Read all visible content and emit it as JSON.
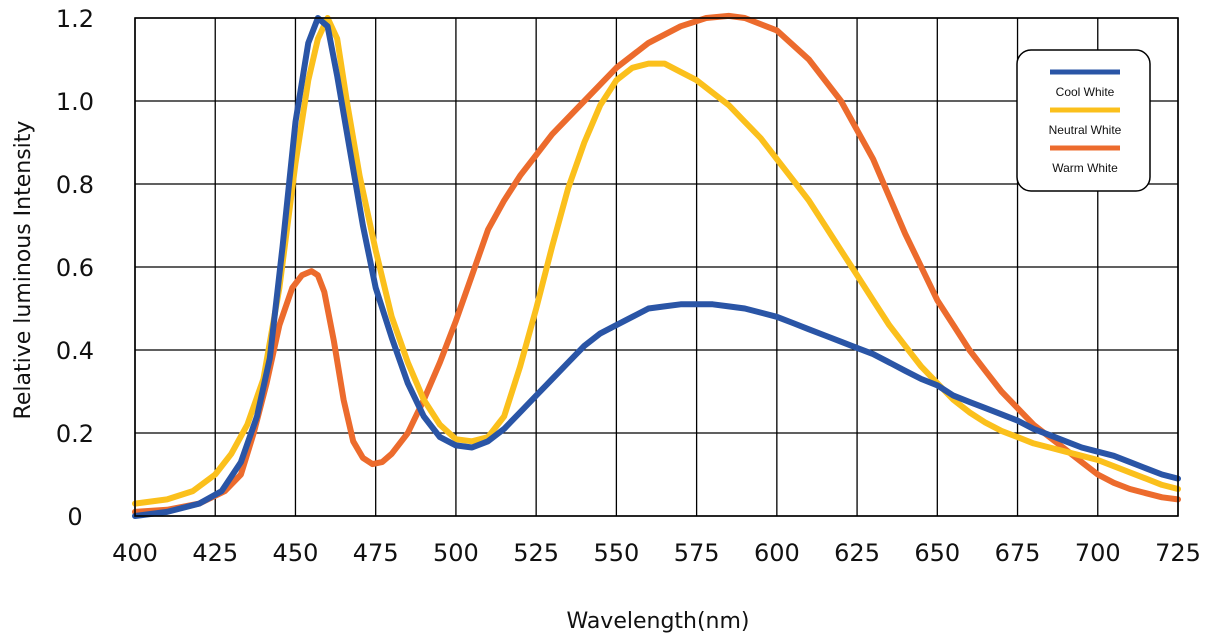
{
  "chart_data": {
    "type": "line",
    "xlabel": "Wavelength(nm)",
    "ylabel": "Relative luminous Intensity",
    "xlim": [
      400,
      725
    ],
    "ylim": [
      0,
      1.2
    ],
    "x_ticks": [
      400,
      425,
      450,
      475,
      500,
      525,
      550,
      575,
      600,
      625,
      650,
      675,
      700,
      725
    ],
    "x_tick_labels": [
      "400",
      "425",
      "450",
      "475",
      "500",
      "525",
      "550",
      "575",
      "600",
      "625",
      "650",
      "675",
      "700",
      "725"
    ],
    "y_ticks": [
      0,
      0.2,
      0.4,
      0.6,
      0.8,
      1.0,
      1.2
    ],
    "y_tick_labels": [
      "0",
      "0.2",
      "0.4",
      "0.6",
      "0.8",
      "1.0",
      "1.2"
    ],
    "grid": true,
    "legend_position": "top-right",
    "series": [
      {
        "name": "Cool White",
        "color": "#2a55a6",
        "points": [
          [
            400,
            0
          ],
          [
            410,
            0.01
          ],
          [
            420,
            0.03
          ],
          [
            427,
            0.06
          ],
          [
            433,
            0.13
          ],
          [
            438,
            0.24
          ],
          [
            442,
            0.38
          ],
          [
            446,
            0.65
          ],
          [
            450,
            0.95
          ],
          [
            454,
            1.14
          ],
          [
            457,
            1.2
          ],
          [
            460,
            1.18
          ],
          [
            463,
            1.06
          ],
          [
            467,
            0.88
          ],
          [
            471,
            0.7
          ],
          [
            475,
            0.55
          ],
          [
            480,
            0.43
          ],
          [
            485,
            0.32
          ],
          [
            490,
            0.24
          ],
          [
            495,
            0.19
          ],
          [
            500,
            0.17
          ],
          [
            505,
            0.165
          ],
          [
            510,
            0.18
          ],
          [
            515,
            0.21
          ],
          [
            520,
            0.25
          ],
          [
            525,
            0.29
          ],
          [
            530,
            0.33
          ],
          [
            535,
            0.37
          ],
          [
            540,
            0.41
          ],
          [
            545,
            0.44
          ],
          [
            550,
            0.46
          ],
          [
            555,
            0.48
          ],
          [
            560,
            0.5
          ],
          [
            565,
            0.505
          ],
          [
            570,
            0.51
          ],
          [
            575,
            0.51
          ],
          [
            580,
            0.51
          ],
          [
            585,
            0.505
          ],
          [
            590,
            0.5
          ],
          [
            595,
            0.49
          ],
          [
            600,
            0.48
          ],
          [
            605,
            0.465
          ],
          [
            610,
            0.45
          ],
          [
            615,
            0.435
          ],
          [
            620,
            0.42
          ],
          [
            625,
            0.405
          ],
          [
            630,
            0.39
          ],
          [
            635,
            0.37
          ],
          [
            640,
            0.35
          ],
          [
            645,
            0.33
          ],
          [
            650,
            0.315
          ],
          [
            655,
            0.29
          ],
          [
            660,
            0.275
          ],
          [
            665,
            0.26
          ],
          [
            670,
            0.245
          ],
          [
            675,
            0.23
          ],
          [
            680,
            0.21
          ],
          [
            685,
            0.195
          ],
          [
            690,
            0.18
          ],
          [
            695,
            0.165
          ],
          [
            700,
            0.155
          ],
          [
            705,
            0.145
          ],
          [
            710,
            0.13
          ],
          [
            715,
            0.115
          ],
          [
            720,
            0.1
          ],
          [
            725,
            0.09
          ]
        ]
      },
      {
        "name": "Neutral White",
        "color": "#fbc01c",
        "points": [
          [
            400,
            0.03
          ],
          [
            410,
            0.04
          ],
          [
            418,
            0.06
          ],
          [
            425,
            0.1
          ],
          [
            430,
            0.15
          ],
          [
            435,
            0.22
          ],
          [
            440,
            0.33
          ],
          [
            445,
            0.55
          ],
          [
            450,
            0.85
          ],
          [
            454,
            1.05
          ],
          [
            457,
            1.15
          ],
          [
            460,
            1.2
          ],
          [
            463,
            1.15
          ],
          [
            466,
            1.0
          ],
          [
            470,
            0.82
          ],
          [
            475,
            0.64
          ],
          [
            480,
            0.48
          ],
          [
            485,
            0.37
          ],
          [
            490,
            0.28
          ],
          [
            495,
            0.22
          ],
          [
            500,
            0.185
          ],
          [
            505,
            0.18
          ],
          [
            510,
            0.19
          ],
          [
            515,
            0.24
          ],
          [
            520,
            0.36
          ],
          [
            525,
            0.5
          ],
          [
            530,
            0.65
          ],
          [
            535,
            0.79
          ],
          [
            540,
            0.9
          ],
          [
            545,
            0.99
          ],
          [
            550,
            1.05
          ],
          [
            555,
            1.08
          ],
          [
            560,
            1.09
          ],
          [
            565,
            1.09
          ],
          [
            570,
            1.07
          ],
          [
            575,
            1.05
          ],
          [
            580,
            1.02
          ],
          [
            585,
            0.99
          ],
          [
            590,
            0.95
          ],
          [
            595,
            0.91
          ],
          [
            600,
            0.86
          ],
          [
            605,
            0.81
          ],
          [
            610,
            0.76
          ],
          [
            615,
            0.7
          ],
          [
            620,
            0.64
          ],
          [
            625,
            0.58
          ],
          [
            630,
            0.52
          ],
          [
            635,
            0.46
          ],
          [
            640,
            0.41
          ],
          [
            645,
            0.36
          ],
          [
            650,
            0.32
          ],
          [
            655,
            0.28
          ],
          [
            660,
            0.25
          ],
          [
            665,
            0.225
          ],
          [
            670,
            0.205
          ],
          [
            675,
            0.19
          ],
          [
            680,
            0.175
          ],
          [
            685,
            0.165
          ],
          [
            690,
            0.155
          ],
          [
            695,
            0.145
          ],
          [
            700,
            0.135
          ],
          [
            705,
            0.12
          ],
          [
            710,
            0.105
          ],
          [
            715,
            0.09
          ],
          [
            720,
            0.075
          ],
          [
            725,
            0.065
          ]
        ]
      },
      {
        "name": "Warm White",
        "color": "#ec6b2d",
        "points": [
          [
            400,
            0.01
          ],
          [
            410,
            0.015
          ],
          [
            420,
            0.03
          ],
          [
            428,
            0.06
          ],
          [
            433,
            0.1
          ],
          [
            437,
            0.2
          ],
          [
            441,
            0.32
          ],
          [
            445,
            0.46
          ],
          [
            449,
            0.55
          ],
          [
            452,
            0.58
          ],
          [
            455,
            0.59
          ],
          [
            457,
            0.58
          ],
          [
            459,
            0.54
          ],
          [
            462,
            0.42
          ],
          [
            465,
            0.28
          ],
          [
            468,
            0.18
          ],
          [
            471,
            0.14
          ],
          [
            474,
            0.125
          ],
          [
            477,
            0.13
          ],
          [
            480,
            0.15
          ],
          [
            485,
            0.2
          ],
          [
            490,
            0.28
          ],
          [
            495,
            0.37
          ],
          [
            500,
            0.47
          ],
          [
            505,
            0.58
          ],
          [
            510,
            0.69
          ],
          [
            515,
            0.76
          ],
          [
            520,
            0.82
          ],
          [
            525,
            0.87
          ],
          [
            530,
            0.92
          ],
          [
            540,
            1.0
          ],
          [
            550,
            1.08
          ],
          [
            560,
            1.14
          ],
          [
            570,
            1.18
          ],
          [
            578,
            1.2
          ],
          [
            585,
            1.205
          ],
          [
            590,
            1.2
          ],
          [
            600,
            1.17
          ],
          [
            610,
            1.1
          ],
          [
            620,
            1.0
          ],
          [
            630,
            0.86
          ],
          [
            640,
            0.68
          ],
          [
            645,
            0.6
          ],
          [
            650,
            0.52
          ],
          [
            655,
            0.46
          ],
          [
            660,
            0.4
          ],
          [
            665,
            0.35
          ],
          [
            670,
            0.3
          ],
          [
            675,
            0.26
          ],
          [
            680,
            0.22
          ],
          [
            685,
            0.19
          ],
          [
            690,
            0.16
          ],
          [
            695,
            0.13
          ],
          [
            700,
            0.1
          ],
          [
            705,
            0.08
          ],
          [
            710,
            0.065
          ],
          [
            715,
            0.055
          ],
          [
            720,
            0.045
          ],
          [
            725,
            0.04
          ]
        ]
      }
    ]
  }
}
